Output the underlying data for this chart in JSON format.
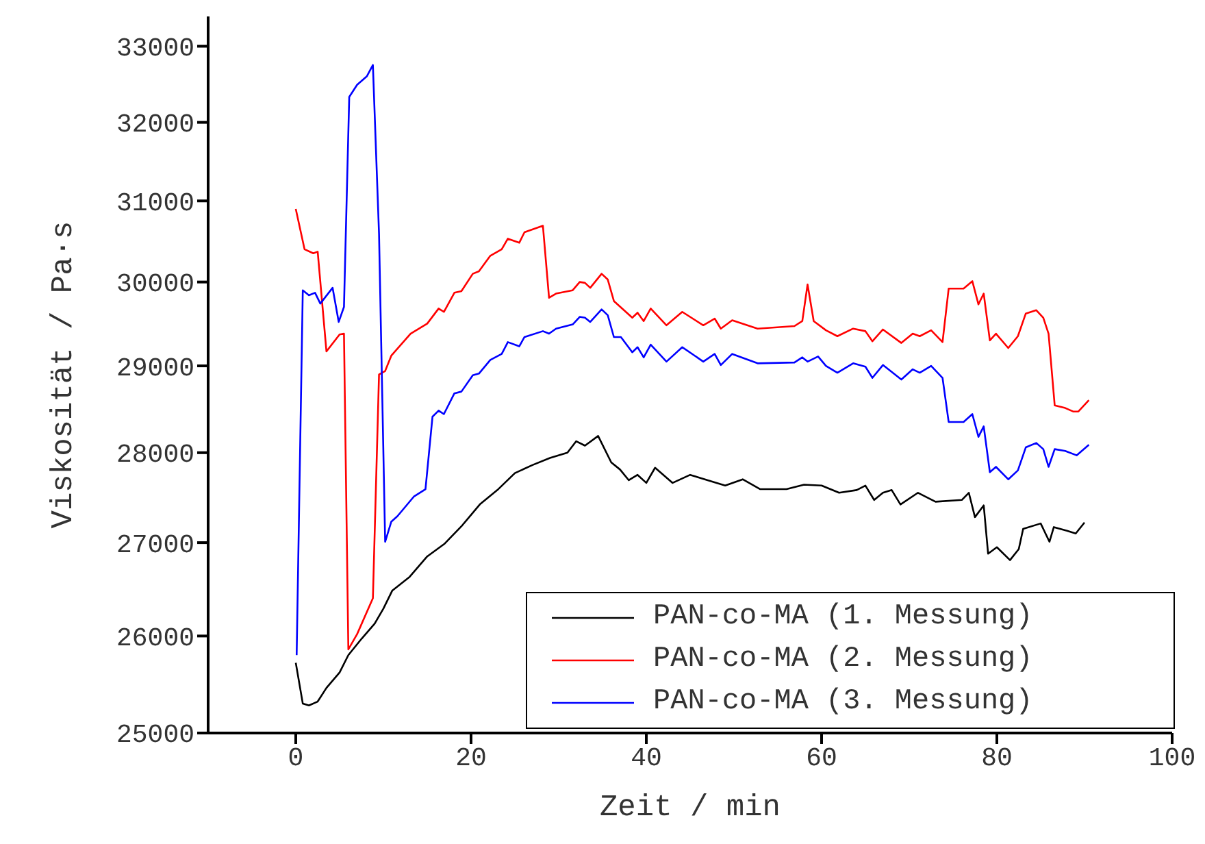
{
  "chart_data": {
    "type": "line",
    "xlabel": "Zeit / min",
    "ylabel": "Viskosität / Pa·s",
    "log": true,
    "xlim": [
      -10,
      100
    ],
    "xticks": [
      0,
      20,
      40,
      60,
      80,
      100
    ],
    "ylim": [
      25000,
      33400
    ],
    "yticks": [
      25000,
      26000,
      27000,
      28000,
      29000,
      30000,
      31000,
      32000,
      33000
    ],
    "legend": "bottom right",
    "line_style": "solid",
    "marker": "none",
    "grid": false,
    "series": [
      {
        "name": "PAN-co-MA (1. Messung)",
        "color": "#000000",
        "x": [
          0,
          0.8,
          1.5,
          2.5,
          3.5,
          5,
          6,
          7.5,
          9,
          10,
          11,
          13,
          15,
          17,
          19,
          21,
          23,
          25,
          27,
          29,
          31,
          32,
          33,
          34.5,
          36,
          37,
          38,
          39,
          40,
          41,
          43,
          45,
          47,
          49,
          51,
          53,
          56,
          58,
          60,
          62,
          64,
          65,
          66,
          67,
          68,
          69,
          71,
          73,
          76,
          76.8,
          77.5,
          78.5,
          79,
          80,
          81.5,
          82.5,
          83,
          85,
          86,
          86.5,
          88,
          89,
          90
        ],
        "values": [
          25720,
          25300,
          25280,
          25320,
          25460,
          25620,
          25800,
          25970,
          26130,
          26290,
          26480,
          26630,
          26850,
          26990,
          27190,
          27420,
          27580,
          27770,
          27860,
          27940,
          28000,
          28130,
          28080,
          28190,
          27890,
          27810,
          27690,
          27750,
          27660,
          27830,
          27660,
          27750,
          27690,
          27630,
          27700,
          27590,
          27590,
          27640,
          27630,
          27550,
          27580,
          27630,
          27470,
          27550,
          27580,
          27420,
          27550,
          27450,
          27470,
          27550,
          27280,
          27410,
          26880,
          26950,
          26810,
          26930,
          27150,
          27210,
          27010,
          27170,
          27130,
          27100,
          27220
        ]
      },
      {
        "name": "PAN-co-MA (2. Messung)",
        "color": "#ff0000",
        "x": [
          0,
          1,
          2,
          2.5,
          3.5,
          5,
          5.5,
          6,
          7,
          8.8,
          9.5,
          10.2,
          10.9,
          13.1,
          15,
          16.3,
          16.9,
          18.1,
          18.9,
          20.2,
          20.9,
          22.2,
          23.5,
          24.2,
          25.5,
          26.1,
          28.2,
          28.9,
          29.7,
          31.6,
          32.4,
          33,
          33.6,
          34.9,
          35.6,
          36.3,
          38.4,
          39,
          39.7,
          40.5,
          42.3,
          44.1,
          46.5,
          47.8,
          48.5,
          49.8,
          52.7,
          56.9,
          57.8,
          58.4,
          59.1,
          60.5,
          61.8,
          63.6,
          65,
          65.8,
          67,
          69.1,
          70.4,
          71.2,
          72.5,
          73.8,
          74.5,
          76.2,
          77.2,
          77.9,
          78.5,
          79.2,
          79.9,
          81.3,
          82.4,
          83.3,
          84.5,
          85.3,
          85.9,
          86.6,
          87.8,
          88.7,
          89.3,
          90.5
        ],
        "values": [
          30900,
          30400,
          30350,
          30370,
          29170,
          29370,
          29380,
          25860,
          26020,
          26400,
          28900,
          28940,
          29120,
          29380,
          29500,
          29680,
          29640,
          29870,
          29890,
          30100,
          30130,
          30320,
          30400,
          30530,
          30480,
          30610,
          30690,
          29810,
          29860,
          29900,
          30000,
          29990,
          29930,
          30100,
          30030,
          29770,
          29570,
          29630,
          29530,
          29680,
          29480,
          29640,
          29480,
          29560,
          29440,
          29540,
          29440,
          29470,
          29530,
          29970,
          29530,
          29420,
          29350,
          29440,
          29410,
          29290,
          29430,
          29270,
          29380,
          29350,
          29420,
          29280,
          29920,
          29920,
          30010,
          29730,
          29860,
          29300,
          29380,
          29210,
          29350,
          29620,
          29660,
          29570,
          29380,
          28540,
          28510,
          28470,
          28470,
          28600
        ]
      },
      {
        "name": "PAN-co-MA (3. Messung)",
        "color": "#0000ff",
        "x": [
          0.1,
          0.8,
          1.5,
          2.2,
          2.8,
          4.2,
          4.9,
          5.5,
          6.1,
          7,
          8.1,
          8.8,
          9.5,
          10.2,
          10.9,
          11.6,
          13.5,
          14.8,
          15.6,
          16.3,
          16.9,
          18.1,
          18.9,
          20.2,
          20.9,
          22.2,
          23.5,
          24.2,
          25.5,
          26.1,
          28.2,
          28.9,
          29.7,
          31.6,
          32.4,
          33,
          33.6,
          34.9,
          35.6,
          36.3,
          37.1,
          38.4,
          39,
          39.7,
          40.5,
          42.3,
          44.1,
          46.5,
          47.8,
          48.5,
          49.8,
          52.7,
          56.9,
          57.8,
          58.4,
          59.6,
          60.5,
          61.8,
          63.6,
          65,
          65.8,
          67,
          69.1,
          70.4,
          71.2,
          72.5,
          73.8,
          74.5,
          76.2,
          77.2,
          77.9,
          78.5,
          79.2,
          79.9,
          81.3,
          82.4,
          83.3,
          84.5,
          85.3,
          85.9,
          86.6,
          87.8,
          89.1,
          90.5
        ],
        "values": [
          25800,
          29900,
          29840,
          29870,
          29740,
          29930,
          29520,
          29700,
          32330,
          32490,
          32600,
          32750,
          30590,
          27010,
          27230,
          27290,
          27510,
          27590,
          28410,
          28480,
          28440,
          28680,
          28700,
          28890,
          28910,
          29070,
          29140,
          29280,
          29230,
          29340,
          29410,
          29380,
          29440,
          29490,
          29580,
          29570,
          29520,
          29670,
          29600,
          29340,
          29340,
          29160,
          29220,
          29100,
          29250,
          29050,
          29220,
          29050,
          29140,
          29010,
          29140,
          29030,
          29040,
          29100,
          29050,
          29110,
          29000,
          28920,
          29030,
          28990,
          28860,
          29010,
          28840,
          28960,
          28920,
          29000,
          28860,
          28350,
          28350,
          28440,
          28180,
          28300,
          27780,
          27840,
          27700,
          27800,
          28060,
          28110,
          28040,
          27840,
          28040,
          28020,
          27970,
          28090
        ]
      }
    ]
  }
}
